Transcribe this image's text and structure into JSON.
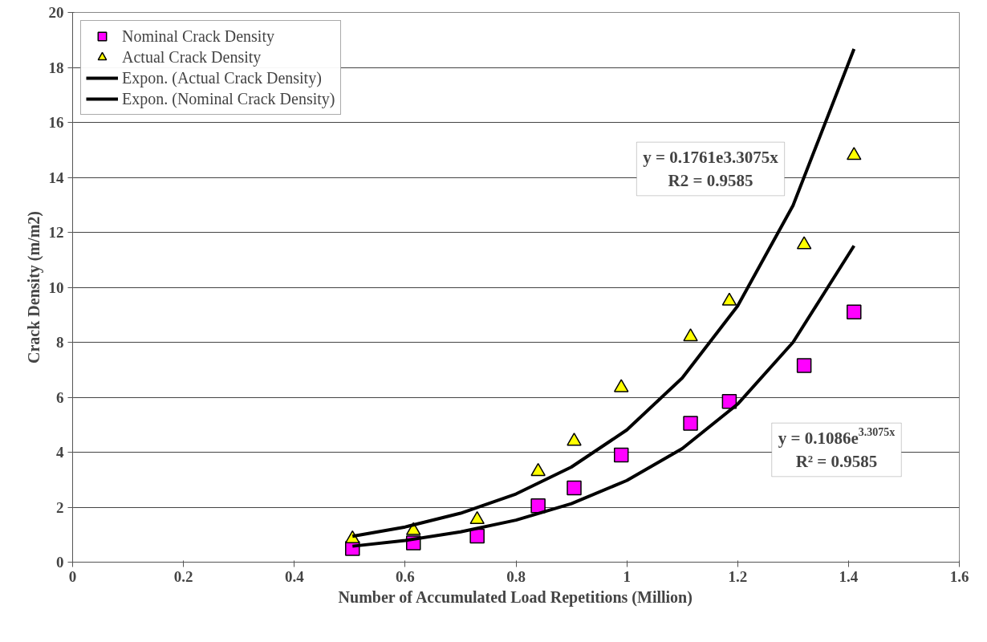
{
  "chart_data": {
    "type": "scatter",
    "xlabel": "Number of Accumulated Load Repetitions (Million)",
    "ylabel": "Crack Density (m/m2)",
    "xlim": [
      0,
      1.6
    ],
    "xticks": [
      0,
      0.2,
      0.4,
      0.6,
      0.8,
      1,
      1.2,
      1.4,
      1.6
    ],
    "ylim": [
      0,
      20
    ],
    "yticks": [
      0,
      2,
      4,
      6,
      8,
      10,
      12,
      14,
      16,
      18,
      20
    ],
    "grid": "y",
    "legend": "top left",
    "x": [
      0.505,
      0.615,
      0.73,
      0.84,
      0.905,
      0.99,
      1.115,
      1.185,
      1.32,
      1.41
    ],
    "series": [
      {
        "name": "Nominal Crack Density",
        "marker": "square",
        "color": "#ff00ff",
        "values": [
          0.5,
          0.7,
          0.95,
          2.05,
          2.7,
          3.9,
          5.05,
          5.85,
          7.15,
          9.1
        ]
      },
      {
        "name": "Actual Crack Density",
        "marker": "triangle",
        "color": "#ffff00",
        "values": [
          0.85,
          1.15,
          1.55,
          3.3,
          4.4,
          6.35,
          8.2,
          9.5,
          11.55,
          14.8
        ]
      },
      {
        "name": "Expon. (Actual Crack Density)",
        "type": "line",
        "color": "#000000",
        "x": [
          0.505,
          0.6,
          0.7,
          0.8,
          0.9,
          1.0,
          1.1,
          1.2,
          1.3,
          1.41
        ],
        "values": [
          0.94,
          1.28,
          1.78,
          2.48,
          3.46,
          4.81,
          6.7,
          9.32,
          12.98,
          18.67
        ]
      },
      {
        "name": "Expon. (Nominal Crack Density)",
        "type": "line",
        "color": "#000000",
        "x": [
          0.505,
          0.6,
          0.7,
          0.8,
          0.9,
          1.0,
          1.1,
          1.2,
          1.3,
          1.41
        ],
        "values": [
          0.58,
          0.79,
          1.1,
          1.53,
          2.13,
          2.97,
          4.13,
          5.75,
          8.0,
          11.51
        ]
      }
    ],
    "annotations": [
      "y = 0.1761e3.3075x\nR2 = 0.9585",
      "y = 0.1086e$^{3.3075x}$\nR² = 0.9585"
    ]
  }
}
